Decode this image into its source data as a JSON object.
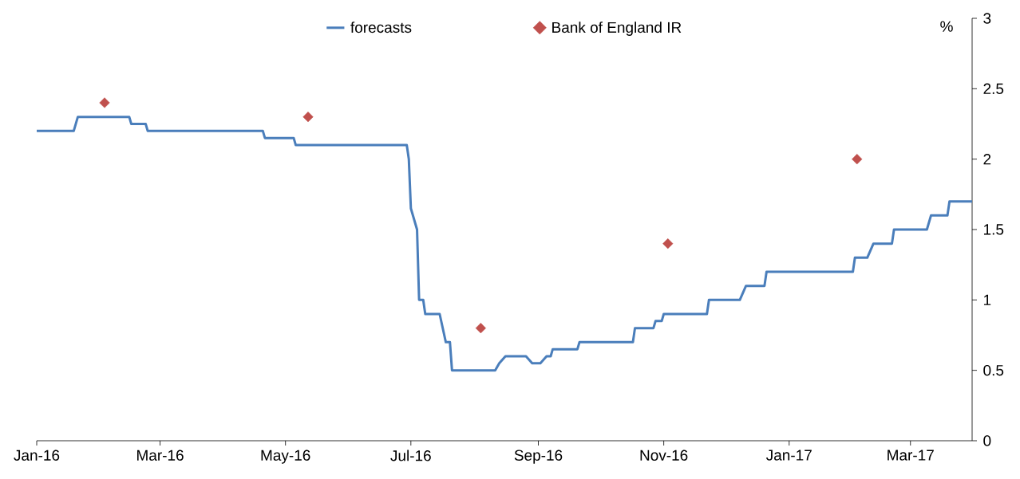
{
  "chart_data": {
    "type": "line",
    "ylabel": "%",
    "legend": "top",
    "xlim": [
      "2016-01-01",
      "2017-03-31"
    ],
    "ylim": [
      0,
      3
    ],
    "xticks": [
      {
        "value": "2016-01-01",
        "label": "Jan-16"
      },
      {
        "value": "2016-03-01",
        "label": "Mar-16"
      },
      {
        "value": "2016-05-01",
        "label": "May-16"
      },
      {
        "value": "2016-07-01",
        "label": "Jul-16"
      },
      {
        "value": "2016-09-01",
        "label": "Sep-16"
      },
      {
        "value": "2016-11-01",
        "label": "Nov-16"
      },
      {
        "value": "2017-01-01",
        "label": "Jan-17"
      },
      {
        "value": "2017-03-01",
        "label": "Mar-17"
      }
    ],
    "yticks": [
      0,
      0.5,
      1,
      1.5,
      2,
      2.5,
      3
    ],
    "series": [
      {
        "name": "forecasts",
        "type": "line",
        "color": "#4a7ebb",
        "x": [
          "2016-01-01",
          "2016-01-19",
          "2016-01-21",
          "2016-02-15",
          "2016-02-16",
          "2016-02-23",
          "2016-02-24",
          "2016-04-20",
          "2016-04-21",
          "2016-05-05",
          "2016-05-06",
          "2016-06-29",
          "2016-06-30",
          "2016-07-01",
          "2016-07-04",
          "2016-07-05",
          "2016-07-07",
          "2016-07-08",
          "2016-07-15",
          "2016-07-18",
          "2016-07-20",
          "2016-07-21",
          "2016-08-11",
          "2016-08-13",
          "2016-08-16",
          "2016-08-26",
          "2016-08-29",
          "2016-09-02",
          "2016-09-05",
          "2016-09-07",
          "2016-09-08",
          "2016-09-20",
          "2016-09-21",
          "2016-10-17",
          "2016-10-18",
          "2016-10-27",
          "2016-10-28",
          "2016-10-31",
          "2016-11-01",
          "2016-11-22",
          "2016-11-23",
          "2016-12-08",
          "2016-12-11",
          "2016-12-20",
          "2016-12-21",
          "2017-02-01",
          "2017-02-02",
          "2017-02-08",
          "2017-02-11",
          "2017-02-20",
          "2017-02-21",
          "2017-03-09",
          "2017-03-11",
          "2017-03-19",
          "2017-03-20",
          "2017-03-31"
        ],
        "values": [
          2.2,
          2.2,
          2.3,
          2.3,
          2.25,
          2.25,
          2.2,
          2.2,
          2.15,
          2.15,
          2.1,
          2.1,
          2.0,
          1.65,
          1.5,
          1.0,
          1.0,
          0.9,
          0.9,
          0.7,
          0.7,
          0.5,
          0.5,
          0.55,
          0.6,
          0.6,
          0.55,
          0.55,
          0.6,
          0.6,
          0.65,
          0.65,
          0.7,
          0.7,
          0.8,
          0.8,
          0.85,
          0.85,
          0.9,
          0.9,
          1.0,
          1.0,
          1.1,
          1.1,
          1.2,
          1.2,
          1.3,
          1.3,
          1.4,
          1.4,
          1.5,
          1.5,
          1.6,
          1.6,
          1.7,
          1.7
        ]
      },
      {
        "name": "Bank of England IR",
        "type": "scatter",
        "marker": "diamond",
        "color": "#c0504d",
        "x": [
          "2016-02-03",
          "2016-05-12",
          "2016-08-04",
          "2016-11-03",
          "2017-02-03"
        ],
        "values": [
          2.4,
          2.3,
          0.8,
          1.4,
          2.0
        ]
      }
    ]
  }
}
